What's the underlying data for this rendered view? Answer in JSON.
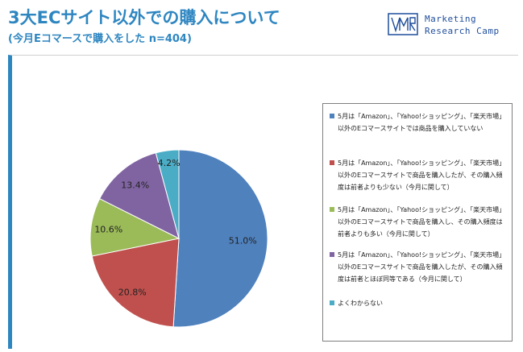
{
  "header": {
    "title": "3大ECサイト以外での購入について",
    "subtitle": "(今月Eコマースで購入をした n=404)"
  },
  "logo": {
    "line1": "Marketing",
    "line2": "Research Camp"
  },
  "colors": {
    "accent": "#2e86c1",
    "logo": "#1f4e9c"
  },
  "chart_data": {
    "type": "pie",
    "slices": [
      {
        "label": "5月は「Amazon」、「Yahoo!ショッピング」、「楽天市場」以外のEコマースサイトでは商品を購入していない",
        "value": 51.0,
        "display": "51.0%",
        "color": "#4f81bd"
      },
      {
        "label": "5月は「Amazon」、「Yahoo!ショッピング」、「楽天市場」以外のEコマースサイトで商品を購入したが、その購入頻度は前者よりも少ない（今月に関して）",
        "value": 20.8,
        "display": "20.8%",
        "color": "#c0504d"
      },
      {
        "label": "5月は「Amazon」、「Yahoo!ショッピング」、「楽天市場」以外のEコマースサイトで商品を購入し、その購入頻度は前者よりも多い（今月に関して）",
        "value": 10.6,
        "display": "10.6%",
        "color": "#9bbb59"
      },
      {
        "label": "5月は「Amazon」、「Yahoo!ショッピング」、「楽天市場」以外のEコマースサイトで商品を購入したが、その購入頻度は前者とほぼ同等である（今月に関して）",
        "value": 13.4,
        "display": "13.4%",
        "color": "#8064a2"
      },
      {
        "label": "よくわからない",
        "value": 4.2,
        "display": "4.2%",
        "color": "#4bacc6"
      }
    ],
    "legend_position": "right"
  }
}
